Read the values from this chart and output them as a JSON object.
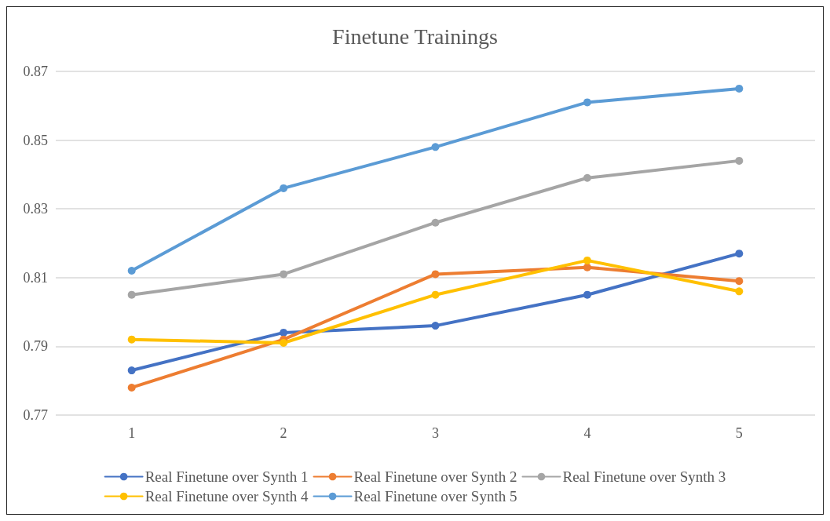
{
  "chart_data": {
    "type": "line",
    "title": "Finetune Trainings",
    "categories": [
      "1",
      "2",
      "3",
      "4",
      "5"
    ],
    "series": [
      {
        "name": "Real Finetune over Synth 1",
        "color": "#4472c4",
        "values": [
          0.783,
          0.794,
          0.796,
          0.805,
          0.817
        ]
      },
      {
        "name": "Real Finetune over Synth 2",
        "color": "#ed7d31",
        "values": [
          0.778,
          0.792,
          0.811,
          0.813,
          0.809
        ]
      },
      {
        "name": "Real Finetune over Synth 3",
        "color": "#a5a5a5",
        "values": [
          0.805,
          0.811,
          0.826,
          0.839,
          0.844
        ]
      },
      {
        "name": "Real Finetune over Synth 4",
        "color": "#ffc000",
        "values": [
          0.792,
          0.791,
          0.805,
          0.815,
          0.806
        ]
      },
      {
        "name": "Real Finetune over Synth 5",
        "color": "#5b9bd5",
        "values": [
          0.812,
          0.836,
          0.848,
          0.861,
          0.865
        ]
      }
    ],
    "ylim": [
      0.77,
      0.87
    ],
    "yticks": [
      0.77,
      0.79,
      0.81,
      0.83,
      0.85,
      0.87
    ],
    "grid": "y",
    "legend": "bottom",
    "marker": "circle",
    "line_style": "solid"
  }
}
